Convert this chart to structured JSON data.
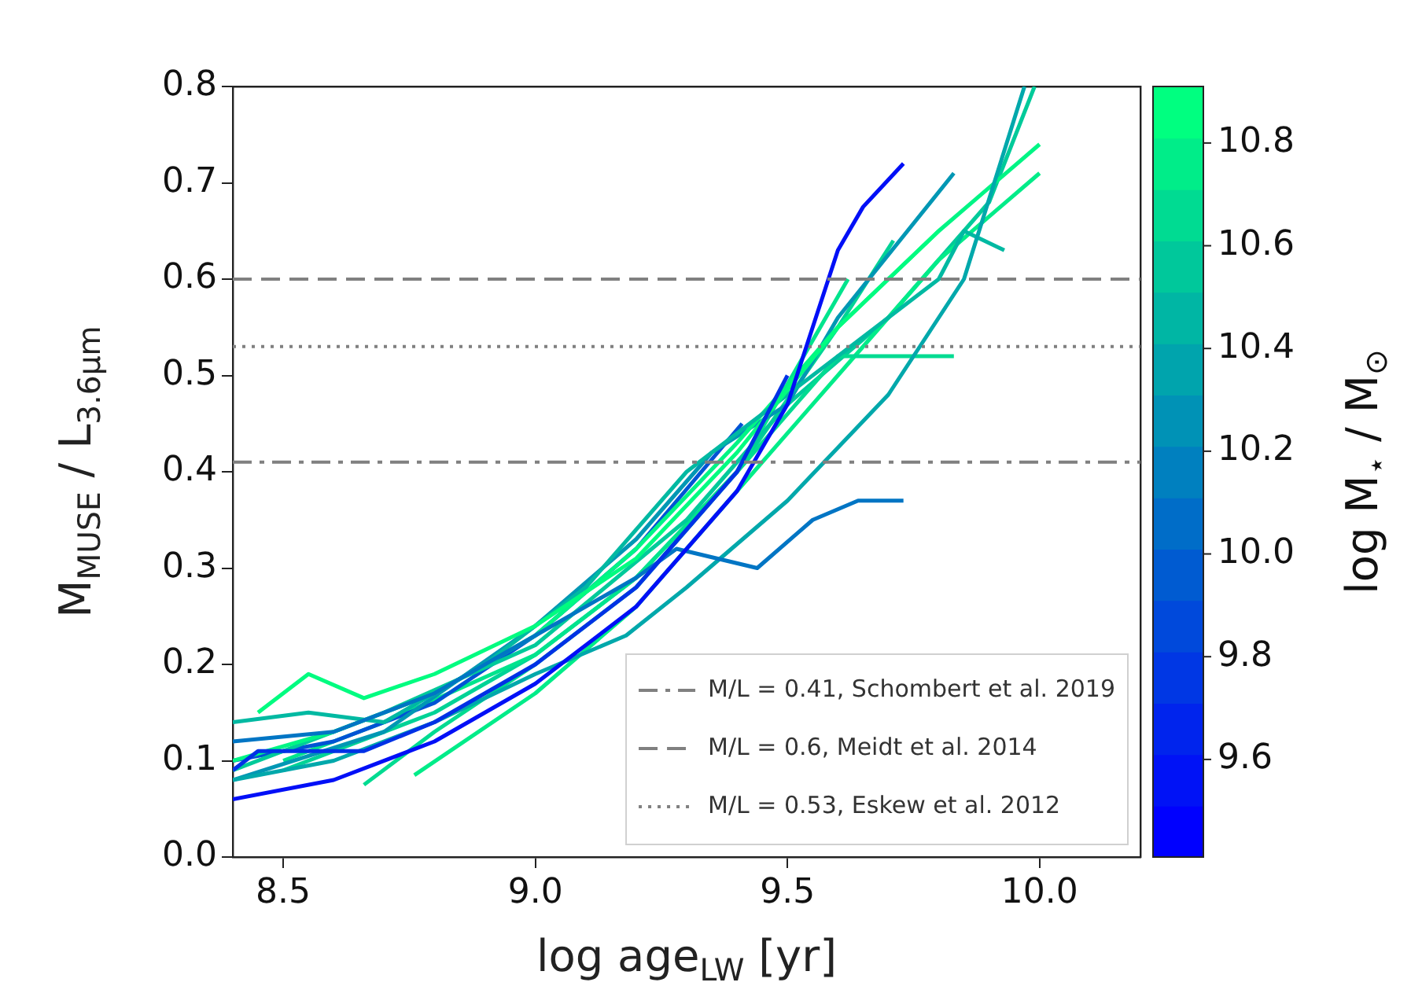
{
  "chart_data": {
    "type": "line",
    "xlabel": "log age$_{LW}$ [yr]",
    "ylabel": "M$_{MUSE}$ / L$_{3.6μm}$",
    "clabel": "log M$_{⋆}$ / M$_{⊙}$",
    "xlim": [
      8.4,
      10.2
    ],
    "xticks": [
      8.5,
      {
        "value": 9,
        "label": "9.0"
      },
      9.5,
      {
        "value": 10,
        "label": "10.0"
      }
    ],
    "ylim": [
      0,
      0.8
    ],
    "yticks": [
      {
        "value": 0,
        "label": "0.0"
      },
      0.1,
      0.2,
      0.3,
      0.4,
      0.5,
      0.6,
      0.7,
      0.8
    ],
    "clim": [
      9.41,
      10.91
    ],
    "cticks": [
      9.6,
      9.8,
      {
        "value": 10,
        "label": "10.0"
      },
      10.2,
      10.4,
      10.6,
      10.8
    ],
    "grid": false,
    "legend": "bottom right",
    "marker": "none",
    "line_style": "solid",
    "series": [
      {
        "color": "#000ff7",
        "x": [
          8.4,
          8.6,
          8.8,
          9.0,
          9.2,
          9.4,
          9.5,
          9.6,
          9.65,
          9.73
        ],
        "values": [
          0.06,
          0.08,
          0.12,
          0.18,
          0.26,
          0.38,
          0.47,
          0.63,
          0.675,
          0.72
        ]
      },
      {
        "color": "#0031e6",
        "x": [
          8.4,
          8.45,
          8.66,
          8.8,
          9.0,
          9.2,
          9.4,
          9.5
        ],
        "values": [
          0.09,
          0.11,
          0.11,
          0.14,
          0.2,
          0.28,
          0.4,
          0.5
        ]
      },
      {
        "color": "#0075c4",
        "x": [
          8.4,
          8.6,
          8.8,
          9.0,
          9.2,
          9.28,
          9.44,
          9.55,
          9.64,
          9.73
        ],
        "values": [
          0.12,
          0.13,
          0.17,
          0.23,
          0.29,
          0.32,
          0.3,
          0.35,
          0.37,
          0.37
        ]
      },
      {
        "color": "#00a8ab",
        "x": [
          8.4,
          8.6,
          8.8,
          9.0,
          9.18,
          9.3,
          9.5,
          9.7,
          9.85,
          9.97
        ],
        "values": [
          0.08,
          0.1,
          0.14,
          0.19,
          0.23,
          0.28,
          0.37,
          0.48,
          0.6,
          0.8
        ]
      },
      {
        "color": "#00fc80",
        "x": [
          8.45,
          8.55,
          8.66,
          8.8,
          9.0,
          9.2,
          9.4,
          9.6,
          9.8
        ],
        "values": [
          0.15,
          0.19,
          0.165,
          0.19,
          0.24,
          0.31,
          0.42,
          0.55,
          0.65
        ]
      },
      {
        "color": "#00b9a2",
        "x": [
          8.4,
          8.55,
          8.7,
          8.9,
          9.1,
          9.3,
          9.4,
          9.6,
          9.8,
          9.85,
          9.93
        ],
        "values": [
          0.14,
          0.15,
          0.14,
          0.2,
          0.28,
          0.4,
          0.44,
          0.52,
          0.6,
          0.65,
          0.63
        ]
      },
      {
        "color": "#00db91",
        "x": [
          8.66,
          8.8,
          9.0,
          9.2,
          9.4,
          9.6,
          9.83
        ],
        "values": [
          0.075,
          0.13,
          0.2,
          0.28,
          0.4,
          0.52,
          0.52
        ]
      },
      {
        "color": "#00ec89",
        "x": [
          8.76,
          9.0,
          9.2,
          9.4,
          9.6,
          9.8,
          10.0
        ],
        "values": [
          0.085,
          0.17,
          0.26,
          0.38,
          0.5,
          0.62,
          0.71
        ]
      },
      {
        "color": "#00f585",
        "x": [
          8.4,
          8.6,
          8.8,
          9.0,
          9.2,
          9.4,
          9.6,
          9.8,
          10.0
        ],
        "values": [
          0.1,
          0.13,
          0.17,
          0.23,
          0.32,
          0.43,
          0.55,
          0.65,
          0.74
        ]
      },
      {
        "color": "#0097b4",
        "x": [
          8.4,
          8.7,
          9.0,
          9.2,
          9.35,
          9.5,
          9.6,
          9.83
        ],
        "values": [
          0.08,
          0.13,
          0.24,
          0.33,
          0.42,
          0.47,
          0.56,
          0.71
        ]
      },
      {
        "color": "#00ca9a",
        "x": [
          8.4,
          8.7,
          9.0,
          9.3,
          9.5,
          9.7,
          9.9,
          9.99
        ],
        "values": [
          0.09,
          0.15,
          0.22,
          0.35,
          0.47,
          0.56,
          0.68,
          0.8
        ]
      },
      {
        "color": "#0053d5",
        "x": [
          8.4,
          8.6,
          8.8,
          9.0,
          9.2,
          9.41
        ],
        "values": [
          0.1,
          0.12,
          0.16,
          0.23,
          0.32,
          0.45
        ]
      },
      {
        "color": "#00e48d",
        "x": [
          8.5,
          8.7,
          9.0,
          9.2,
          9.4,
          9.62
        ],
        "values": [
          0.1,
          0.14,
          0.21,
          0.29,
          0.4,
          0.6
        ]
      },
      {
        "color": "#00d396",
        "x": [
          8.5,
          8.8,
          9.0,
          9.2,
          9.4,
          9.6,
          9.71
        ],
        "values": [
          0.09,
          0.15,
          0.21,
          0.29,
          0.4,
          0.55,
          0.64
        ]
      }
    ],
    "ref_lines": [
      {
        "axis": "y",
        "value": 0.41,
        "label": "M/L = 0.41, Schombert et al. 2019",
        "color": "#808080",
        "line_style": "dashdot"
      },
      {
        "axis": "y",
        "value": 0.6,
        "label": "M/L = 0.6, Meidt et al. 2014",
        "color": "#808080",
        "line_style": "dashed"
      },
      {
        "axis": "y",
        "value": 0.53,
        "label": "M/L = 0.53, Eskew et al. 2012",
        "color": "#808080",
        "line_style": "dotted"
      }
    ]
  }
}
